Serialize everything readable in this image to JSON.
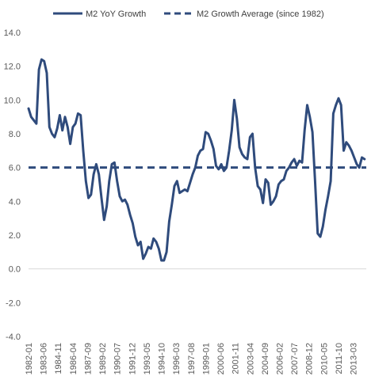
{
  "chart_data": {
    "type": "line",
    "title": "",
    "xlabel": "",
    "ylabel": "",
    "ylim": [
      -4.0,
      14.0
    ],
    "yticks": [
      "-4.0",
      "-2.0",
      "0.0",
      "2.0",
      "4.0",
      "6.0",
      "8.0",
      "10.0",
      "12.0",
      "14.0"
    ],
    "xtick_labels": [
      "1982-01",
      "1983-06",
      "1984-11",
      "1986-04",
      "1987-09",
      "1989-02",
      "1990-07",
      "1991-12",
      "1993-05",
      "1994-10",
      "1996-03",
      "1997-08",
      "1999-01",
      "2000-06",
      "2001-11",
      "2003-04",
      "2004-09",
      "2006-02",
      "2007-07",
      "2008-12",
      "2010-05",
      "2011-10",
      "2013-03"
    ],
    "x_range": [
      "1982-01",
      "2014-06"
    ],
    "grid": false,
    "legend_position": "top",
    "colors": {
      "series": "#2f4b7c",
      "axis": "#d9d9d9",
      "text": "#595959"
    },
    "series": [
      {
        "name": "M2 YoY Growth",
        "style": "solid",
        "x": [
          "1982-01",
          "1982-04",
          "1982-07",
          "1982-10",
          "1983-01",
          "1983-04",
          "1983-07",
          "1983-10",
          "1984-01",
          "1984-04",
          "1984-07",
          "1984-10",
          "1985-01",
          "1985-04",
          "1985-07",
          "1985-10",
          "1986-01",
          "1986-04",
          "1986-07",
          "1986-10",
          "1987-01",
          "1987-04",
          "1987-07",
          "1987-10",
          "1988-01",
          "1988-04",
          "1988-07",
          "1988-10",
          "1989-01",
          "1989-04",
          "1989-07",
          "1989-10",
          "1990-01",
          "1990-04",
          "1990-07",
          "1990-10",
          "1991-01",
          "1991-04",
          "1991-07",
          "1991-10",
          "1992-01",
          "1992-04",
          "1992-07",
          "1992-10",
          "1993-01",
          "1993-04",
          "1993-07",
          "1993-10",
          "1994-01",
          "1994-04",
          "1994-07",
          "1994-10",
          "1995-01",
          "1995-04",
          "1995-07",
          "1995-10",
          "1996-01",
          "1996-04",
          "1996-07",
          "1996-10",
          "1997-01",
          "1997-04",
          "1997-07",
          "1997-10",
          "1998-01",
          "1998-04",
          "1998-07",
          "1998-10",
          "1999-01",
          "1999-04",
          "1999-07",
          "1999-10",
          "2000-01",
          "2000-04",
          "2000-07",
          "2000-10",
          "2001-01",
          "2001-04",
          "2001-07",
          "2001-10",
          "2002-01",
          "2002-04",
          "2002-07",
          "2002-10",
          "2003-01",
          "2003-04",
          "2003-07",
          "2003-10",
          "2004-01",
          "2004-04",
          "2004-07",
          "2004-10",
          "2005-01",
          "2005-04",
          "2005-07",
          "2005-10",
          "2006-01",
          "2006-04",
          "2006-07",
          "2006-10",
          "2007-01",
          "2007-04",
          "2007-07",
          "2007-10",
          "2008-01",
          "2008-04",
          "2008-07",
          "2008-10",
          "2009-01",
          "2009-04",
          "2009-07",
          "2009-10",
          "2010-01",
          "2010-04",
          "2010-07",
          "2010-10",
          "2011-01",
          "2011-04",
          "2011-07",
          "2011-10",
          "2012-01",
          "2012-04",
          "2012-07",
          "2012-10",
          "2013-01",
          "2013-04",
          "2013-07",
          "2013-10",
          "2014-01",
          "2014-04"
        ],
        "y": [
          9.5,
          9.0,
          8.8,
          8.6,
          11.8,
          12.4,
          12.3,
          11.6,
          8.4,
          8.0,
          7.8,
          8.3,
          9.1,
          8.2,
          9.0,
          8.4,
          7.4,
          8.4,
          8.6,
          9.2,
          9.1,
          7.0,
          5.2,
          4.2,
          4.4,
          5.6,
          6.2,
          5.6,
          4.2,
          2.9,
          3.7,
          5.2,
          6.2,
          6.3,
          5.2,
          4.3,
          4.0,
          4.1,
          3.8,
          3.2,
          2.7,
          1.9,
          1.4,
          1.6,
          0.6,
          0.9,
          1.3,
          1.2,
          1.8,
          1.6,
          1.2,
          0.5,
          0.5,
          1.0,
          2.8,
          3.8,
          4.9,
          5.2,
          4.5,
          4.6,
          4.7,
          4.6,
          5.1,
          5.6,
          6.0,
          6.7,
          7.0,
          7.1,
          8.1,
          8.0,
          7.6,
          7.1,
          6.1,
          5.9,
          6.2,
          5.8,
          6.0,
          7.0,
          8.2,
          10.0,
          8.9,
          7.2,
          6.8,
          6.6,
          6.5,
          7.8,
          8.0,
          6.0,
          4.9,
          4.7,
          3.9,
          5.3,
          5.1,
          3.8,
          4.0,
          4.3,
          5.0,
          5.2,
          5.3,
          5.8,
          6.0,
          6.3,
          6.5,
          6.1,
          6.4,
          6.3,
          8.2,
          9.7,
          9.0,
          8.1,
          5.2,
          2.1,
          1.9,
          2.5,
          3.5,
          4.3,
          5.2,
          9.2,
          9.7,
          10.1,
          9.7,
          7.0,
          7.5,
          7.3,
          7.0,
          6.6,
          6.2,
          6.0,
          6.6,
          6.5
        ]
      },
      {
        "name": "M2 Growth Average (since 1982)",
        "style": "dashed",
        "value": 6.0
      }
    ]
  }
}
